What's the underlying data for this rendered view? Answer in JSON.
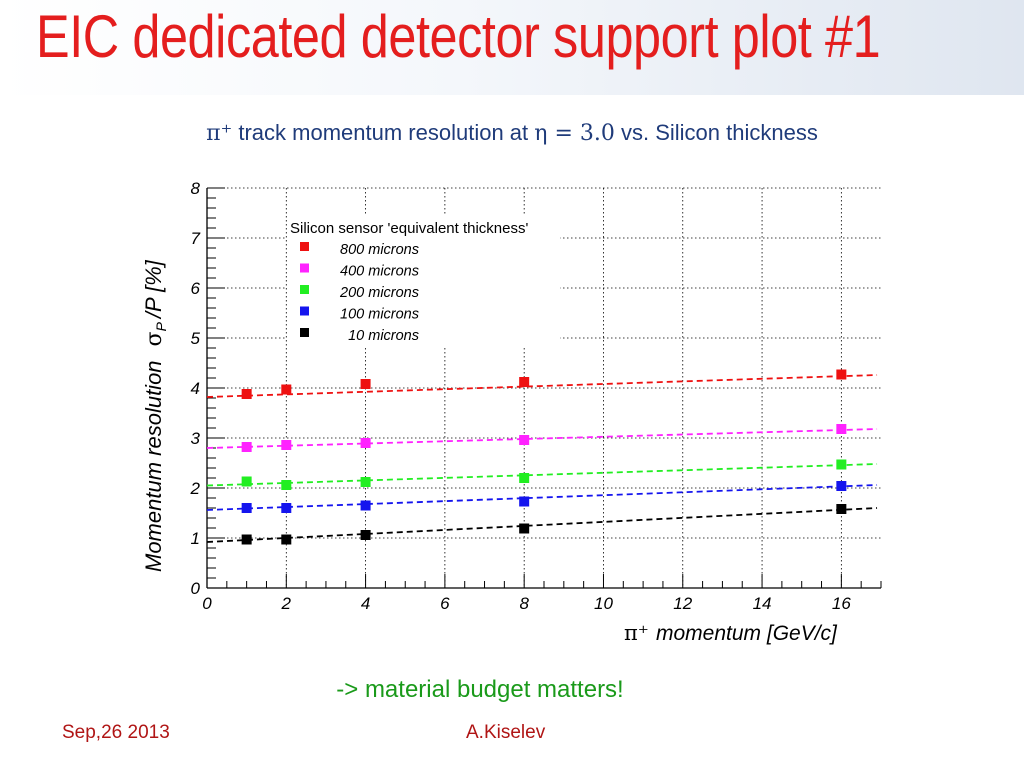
{
  "slide": {
    "title": "EIC dedicated detector support plot #1",
    "takeaway": "-> material budget matters!",
    "footer_date": "Sep,26 2013",
    "footer_author": "A.Kiselev"
  },
  "colors": {
    "title": "#e41e1e",
    "chart_title": "#1f3b7a",
    "takeaway": "#1a9a1a",
    "footer": "#b01515"
  },
  "chart_data": {
    "type": "scatter",
    "title_prefix": "π⁺",
    "title_mid": "track momentum resolution at",
    "title_eta": "η = 3.0",
    "title_suffix": "vs. Silicon thickness",
    "xlabel_symbol": "π⁺",
    "xlabel_text": "momentum [GeV/c]",
    "ylabel_text": "Momentum resolution",
    "ylabel_symbol": "σ",
    "ylabel_subscript": "P",
    "ylabel_suffix": "/P  [%]",
    "xlim": [
      0,
      17
    ],
    "ylim": [
      0,
      8
    ],
    "xticks": [
      0,
      2,
      4,
      6,
      8,
      10,
      12,
      14,
      16
    ],
    "yticks": [
      0,
      1,
      2,
      3,
      4,
      5,
      6,
      7,
      8
    ],
    "grid": true,
    "legend_title": "Silicon sensor 'equivalent thickness'",
    "legend_position": "top-left",
    "series": [
      {
        "name": "800 microns",
        "color": "#ee1111",
        "x": [
          1,
          2,
          4,
          8,
          16
        ],
        "y": [
          3.88,
          3.97,
          4.08,
          4.12,
          4.27
        ],
        "fit": [
          3.82,
          4.26
        ]
      },
      {
        "name": "400 microns",
        "color": "#ff22ff",
        "x": [
          1,
          2,
          4,
          8,
          16
        ],
        "y": [
          2.82,
          2.86,
          2.9,
          2.96,
          3.18
        ],
        "fit": [
          2.8,
          3.18
        ]
      },
      {
        "name": "200 microns",
        "color": "#22ee22",
        "x": [
          1,
          2,
          4,
          8,
          16
        ],
        "y": [
          2.13,
          2.06,
          2.12,
          2.2,
          2.47
        ],
        "fit": [
          2.05,
          2.48
        ]
      },
      {
        "name": "100 microns",
        "color": "#1515ee",
        "x": [
          1,
          2,
          4,
          8,
          16
        ],
        "y": [
          1.6,
          1.6,
          1.65,
          1.73,
          2.04
        ],
        "fit": [
          1.56,
          2.06
        ]
      },
      {
        "name": "10 microns",
        "color": "#000000",
        "x": [
          1,
          2,
          4,
          8,
          16
        ],
        "y": [
          0.97,
          0.97,
          1.06,
          1.19,
          1.58
        ],
        "fit": [
          0.92,
          1.6
        ]
      }
    ]
  }
}
